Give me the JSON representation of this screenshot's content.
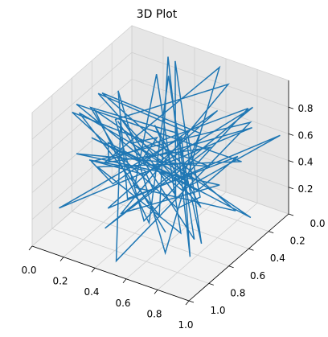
{
  "chart_data": {
    "type": "line",
    "subtype": "3d",
    "title": "3D Plot",
    "xlabel": "",
    "ylabel": "",
    "zlabel": "",
    "x_ticks": [
      "0.0",
      "0.2",
      "0.4",
      "0.6",
      "0.8",
      "1.0"
    ],
    "y_ticks": [
      "0.0",
      "0.2",
      "0.4",
      "0.6",
      "0.8",
      "1.0"
    ],
    "z_ticks": [
      "0.2",
      "0.4",
      "0.6",
      "0.8"
    ],
    "xlim": [
      0,
      1
    ],
    "ylim": [
      0,
      1
    ],
    "zlim": [
      0.0,
      1.0
    ],
    "grid": true,
    "colors": {
      "line": "#1f77b4",
      "pane_left": "#ebebeb",
      "pane_right": "#e6e6e6",
      "pane_bottom": "#f2f2f2",
      "grid": "#d0d0d0",
      "axis": "#000000"
    },
    "x": [
      0.12,
      0.85,
      0.31,
      0.67,
      0.05,
      0.93,
      0.44,
      0.22,
      0.78,
      0.58,
      0.15,
      0.71,
      0.36,
      0.89,
      0.27,
      0.63,
      0.09,
      0.52,
      0.97,
      0.41,
      0.18,
      0.74,
      0.33,
      0.86,
      0.48,
      0.02,
      0.69,
      0.25,
      0.81,
      0.56,
      0.14,
      0.92,
      0.39,
      0.65,
      0.07,
      0.77,
      0.29,
      0.54,
      0.95,
      0.43,
      0.11,
      0.83,
      0.61,
      0.2,
      0.72,
      0.35,
      0.88,
      0.5,
      0.04,
      0.66,
      0.3,
      0.79,
      0.46,
      0.16,
      0.91,
      0.57,
      0.24,
      0.7,
      0.38,
      0.84,
      0.13,
      0.6,
      0.99,
      0.28,
      0.75,
      0.42,
      0.08,
      0.87,
      0.53,
      0.19,
      0.68,
      0.34,
      0.94,
      0.47,
      0.1,
      0.8
    ],
    "y": [
      0.33,
      0.71,
      0.12,
      0.88,
      0.45,
      0.27,
      0.93,
      0.58,
      0.06,
      0.79,
      0.4,
      0.15,
      0.67,
      0.52,
      0.98,
      0.21,
      0.74,
      0.36,
      0.84,
      0.09,
      0.62,
      0.47,
      0.29,
      0.9,
      0.14,
      0.56,
      0.81,
      0.03,
      0.69,
      0.38,
      0.95,
      0.24,
      0.51,
      0.77,
      0.11,
      0.64,
      0.86,
      0.19,
      0.43,
      0.72,
      0.31,
      0.97,
      0.08,
      0.59,
      0.35,
      0.82,
      0.17,
      0.66,
      0.49,
      0.91,
      0.26,
      0.73,
      0.04,
      0.55,
      0.39,
      0.87,
      0.13,
      0.61,
      0.94,
      0.22,
      0.76,
      0.44,
      0.07,
      0.68,
      0.32,
      0.85,
      0.53,
      0.18,
      0.99,
      0.41,
      0.63,
      0.1,
      0.78,
      0.28,
      0.57,
      0.92
    ],
    "z": [
      0.55,
      0.21,
      0.83,
      0.37,
      0.68,
      0.12,
      0.91,
      0.46,
      0.74,
      0.29,
      0.62,
      0.95,
      0.18,
      0.51,
      0.79,
      0.34,
      0.87,
      0.08,
      0.66,
      0.43,
      0.97,
      0.25,
      0.58,
      0.81,
      0.14,
      0.72,
      0.39,
      0.89,
      0.05,
      0.64,
      0.31,
      0.77,
      0.49,
      0.93,
      0.22,
      0.56,
      0.84,
      0.11,
      0.69,
      0.35,
      0.76,
      0.27,
      0.99,
      0.44,
      0.61,
      0.16,
      0.86,
      0.52,
      0.33,
      0.78,
      0.07,
      0.67,
      0.41,
      0.92,
      0.24,
      0.59,
      0.82,
      0.13,
      0.71,
      0.47,
      0.96,
      0.3,
      0.63,
      0.19,
      0.88,
      0.54,
      0.36,
      0.75,
      0.1,
      0.65,
      0.42,
      0.94,
      0.26,
      0.57,
      0.8,
      0.38
    ]
  }
}
